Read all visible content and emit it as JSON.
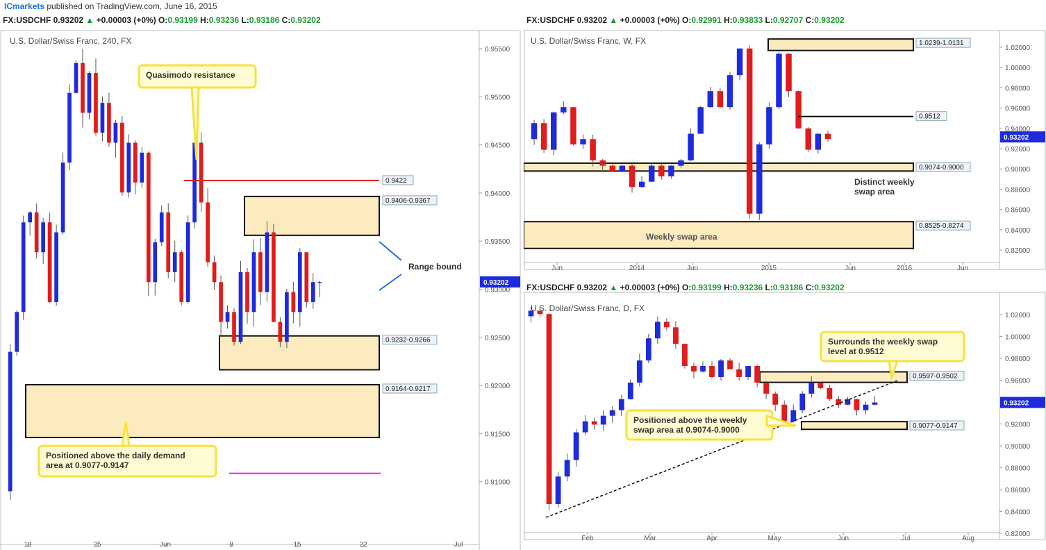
{
  "header": {
    "brand": "ICmarkets",
    "published": " published on TradingView.com, June 16, 2015"
  },
  "colors": {
    "bull": "#1e2bdc",
    "bear": "#e01c1c",
    "zone_fill": "#fdebc0",
    "zone_stroke": "#111111",
    "callout_fill": "#fffbd2",
    "callout_stroke": "#f6e23c",
    "price_tag": "#1e2bdc",
    "resistance_line": "#e52222",
    "magenta_line": "#ee22ee",
    "arrow": "#1e6fd8"
  },
  "panels": {
    "h4": {
      "symbol": "FX:USDCHF",
      "last": "0.93202",
      "change": "+0.00003 (+0%)",
      "open_label": "O:",
      "open": "0.93199",
      "high_label": "H:",
      "high": "0.93236",
      "low_label": "L:",
      "low": "0.93186",
      "close_label": "C:",
      "close": "0.93202",
      "title": "U.S. Dollar/Swiss Franc, 240, FX",
      "price_tag": "0.93202"
    },
    "weekly": {
      "symbol": "FX:USDCHF",
      "last": "0.93202",
      "change": "+0.00003 (+0%)",
      "open_label": "O:",
      "open": "0.92991",
      "high_label": "H:",
      "high": "0.93833",
      "low_label": "L:",
      "low": "0.92707",
      "close_label": "C:",
      "close": "0.93202",
      "title": "U.S. Dollar/Swiss Franc, W, FX",
      "price_tag": "0.93202"
    },
    "daily": {
      "symbol": "FX:USDCHF",
      "last": "0.93202",
      "change": "+0.00003 (+0%)",
      "open_label": "O:",
      "open": "0.93199",
      "high_label": "H:",
      "high": "0.93236",
      "low_label": "L:",
      "low": "0.93186",
      "close_label": "C:",
      "close": "0.93202",
      "title": "U.S. Dollar/Swiss Franc, D, FX",
      "price_tag": "0.93202"
    }
  },
  "chart_data": [
    {
      "type": "candlestick",
      "title": "U.S. Dollar/Swiss Franc, 240, FX",
      "timeframe": "240",
      "x_ticks": [
        "18",
        "25",
        "Jun",
        "8",
        "15",
        "22",
        "Jul"
      ],
      "y_ticks": [
        "0.95500",
        "0.95000",
        "0.94500",
        "0.94000",
        "0.93500",
        "0.93000",
        "0.92500",
        "0.92000",
        "0.91500",
        "0.91000"
      ],
      "ylim": [
        0.9058,
        0.9567
      ],
      "last_price": 0.93202,
      "series_points": [
        [
          0.911,
          0.925
        ],
        [
          0.925,
          0.929
        ],
        [
          0.929,
          0.938
        ],
        [
          0.938,
          0.939
        ],
        [
          0.939,
          0.935
        ],
        [
          0.935,
          0.938
        ],
        [
          0.938,
          0.93
        ],
        [
          0.93,
          0.937
        ],
        [
          0.937,
          0.944
        ],
        [
          0.944,
          0.951
        ],
        [
          0.951,
          0.954
        ],
        [
          0.954,
          0.949
        ],
        [
          0.949,
          0.953
        ],
        [
          0.953,
          0.947
        ],
        [
          0.947,
          0.95
        ],
        [
          0.95,
          0.946
        ],
        [
          0.946,
          0.948
        ],
        [
          0.948,
          0.941
        ],
        [
          0.941,
          0.946
        ],
        [
          0.946,
          0.942
        ],
        [
          0.942,
          0.945
        ],
        [
          0.945,
          0.932
        ],
        [
          0.932,
          0.936
        ],
        [
          0.936,
          0.939
        ],
        [
          0.939,
          0.933
        ],
        [
          0.933,
          0.935
        ],
        [
          0.935,
          0.93
        ],
        [
          0.93,
          0.938
        ],
        [
          0.938,
          0.946
        ],
        [
          0.946,
          0.94
        ],
        [
          0.94,
          0.934
        ],
        [
          0.934,
          0.932
        ],
        [
          0.932,
          0.928
        ],
        [
          0.928,
          0.929
        ],
        [
          0.929,
          0.926
        ],
        [
          0.926,
          0.933
        ],
        [
          0.933,
          0.929
        ],
        [
          0.929,
          0.935
        ],
        [
          0.935,
          0.931
        ],
        [
          0.931,
          0.937
        ],
        [
          0.937,
          0.928
        ],
        [
          0.928,
          0.926
        ],
        [
          0.926,
          0.931
        ],
        [
          0.931,
          0.929
        ],
        [
          0.929,
          0.935
        ],
        [
          0.935,
          0.93
        ],
        [
          0.93,
          0.932
        ],
        [
          0.932,
          0.932
        ]
      ],
      "horizontal_lines": [
        {
          "price": 0.9422,
          "label": "0.9422",
          "color": "#e52222"
        },
        {
          "price": 0.9128,
          "label": "",
          "color": "#ee22ee"
        }
      ],
      "zones": [
        {
          "label": "0.9406-0.9367",
          "top": 0.9406,
          "bottom": 0.9367
        },
        {
          "label": "0.9232-0.9266",
          "top": 0.9266,
          "bottom": 0.9232
        },
        {
          "label": "0.9164-0.9217",
          "top": 0.9217,
          "bottom": 0.9164
        }
      ],
      "annotations": [
        "Quasimodo resistance",
        "Range bound",
        "Positioned above the daily demand",
        "area at 0.9077-0.9147"
      ]
    },
    {
      "type": "candlestick",
      "title": "U.S. Dollar/Swiss Franc, W, FX",
      "timeframe": "W",
      "x_ticks": [
        "Jun",
        "2014",
        "Jun",
        "2015",
        "Jun",
        "2016",
        "Jun"
      ],
      "y_ticks": [
        "1.02000",
        "1.00000",
        "0.98000",
        "0.96000",
        "0.94000",
        "0.92000",
        "0.90000",
        "0.88000",
        "0.86000",
        "0.84000",
        "0.82000"
      ],
      "ylim": [
        0.8155,
        1.0266
      ],
      "last_price": 0.93202,
      "series_points": [
        [
          0.93,
          0.945
        ],
        [
          0.945,
          0.92
        ],
        [
          0.92,
          0.955
        ],
        [
          0.955,
          0.96
        ],
        [
          0.96,
          0.925
        ],
        [
          0.925,
          0.93
        ],
        [
          0.93,
          0.91
        ],
        [
          0.91,
          0.905
        ],
        [
          0.905,
          0.9
        ],
        [
          0.9,
          0.905
        ],
        [
          0.905,
          0.885
        ],
        [
          0.885,
          0.89
        ],
        [
          0.89,
          0.905
        ],
        [
          0.905,
          0.895
        ],
        [
          0.895,
          0.905
        ],
        [
          0.905,
          0.91
        ],
        [
          0.91,
          0.935
        ],
        [
          0.935,
          0.96
        ],
        [
          0.96,
          0.975
        ],
        [
          0.975,
          0.96
        ],
        [
          0.96,
          0.99
        ],
        [
          0.99,
          1.015
        ],
        [
          1.015,
          0.86
        ],
        [
          0.86,
          0.925
        ],
        [
          0.925,
          0.96
        ],
        [
          0.96,
          1.01
        ],
        [
          1.01,
          0.975
        ],
        [
          0.975,
          0.94
        ],
        [
          0.94,
          0.92
        ],
        [
          0.92,
          0.935
        ],
        [
          0.935,
          0.93
        ]
      ],
      "horizontal_lines": [
        {
          "price": 0.9512,
          "label": "0.9512",
          "color": "#000000"
        }
      ],
      "zones": [
        {
          "label": "1.0239-1.0131",
          "top": 1.0239,
          "bottom": 1.0131
        },
        {
          "label": "0.9074-0.9000",
          "top": 0.9074,
          "bottom": 0.9
        },
        {
          "label": "0.8525-0.8274",
          "top": 0.8525,
          "bottom": 0.8274
        }
      ],
      "annotations": [
        "Distinct weekly",
        "swap area",
        "Weekly swap area"
      ]
    },
    {
      "type": "candlestick",
      "title": "U.S. Dollar/Swiss Franc, D, FX",
      "timeframe": "D",
      "x_ticks": [
        "Feb",
        "Mar",
        "Apr",
        "May",
        "Jun",
        "Jul",
        "Aug"
      ],
      "y_ticks": [
        "1.02000",
        "1.00000",
        "0.98000",
        "0.96000",
        "0.94000",
        "0.92000",
        "0.90000",
        "0.88000",
        "0.86000",
        "0.84000",
        "0.82000"
      ],
      "ylim": [
        0.8155,
        1.0266
      ],
      "last_price": 0.93202,
      "series_points": [
        [
          1.01,
          1.015
        ],
        [
          1.015,
          1.012
        ],
        [
          1.012,
          0.84
        ],
        [
          0.84,
          0.865
        ],
        [
          0.865,
          0.88
        ],
        [
          0.88,
          0.905
        ],
        [
          0.905,
          0.915
        ],
        [
          0.915,
          0.912
        ],
        [
          0.912,
          0.92
        ],
        [
          0.92,
          0.925
        ],
        [
          0.925,
          0.935
        ],
        [
          0.935,
          0.95
        ],
        [
          0.95,
          0.97
        ],
        [
          0.97,
          0.99
        ],
        [
          0.99,
          1.005
        ],
        [
          1.005,
          1.0
        ],
        [
          1.0,
          0.985
        ],
        [
          0.985,
          0.965
        ],
        [
          0.965,
          0.96
        ],
        [
          0.96,
          0.965
        ],
        [
          0.965,
          0.955
        ],
        [
          0.955,
          0.97
        ],
        [
          0.97,
          0.962
        ],
        [
          0.962,
          0.955
        ],
        [
          0.955,
          0.965
        ],
        [
          0.965,
          0.95
        ],
        [
          0.95,
          0.94
        ],
        [
          0.94,
          0.93
        ],
        [
          0.93,
          0.915
        ],
        [
          0.915,
          0.925
        ],
        [
          0.925,
          0.94
        ],
        [
          0.94,
          0.95
        ],
        [
          0.95,
          0.945
        ],
        [
          0.945,
          0.935
        ],
        [
          0.935,
          0.93
        ],
        [
          0.93,
          0.935
        ],
        [
          0.935,
          0.925
        ],
        [
          0.925,
          0.93
        ],
        [
          0.93,
          0.932
        ]
      ],
      "trendline": [
        [
          0,
          0.828
        ],
        [
          38,
          0.952
        ]
      ],
      "zones": [
        {
          "label": "0.9597-0.9502",
          "top": 0.9597,
          "bottom": 0.9502
        },
        {
          "label": "0.9077-0.9147",
          "top": 0.9147,
          "bottom": 0.9077
        }
      ],
      "annotations": [
        "Surrounds the weekly swap",
        "level at 0.9512",
        "Positioned above the weekly",
        "swap area at 0.9074-0.9000"
      ]
    }
  ]
}
